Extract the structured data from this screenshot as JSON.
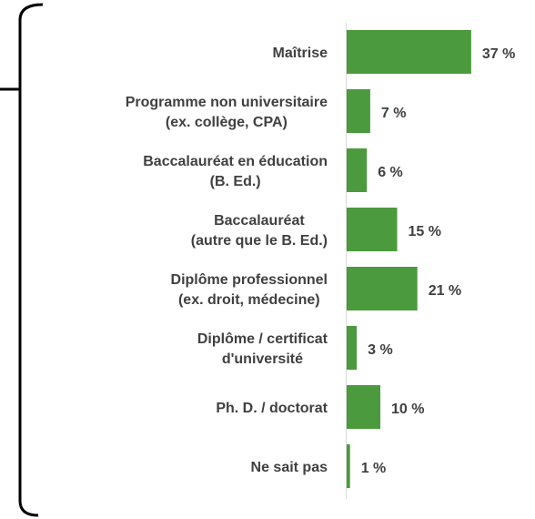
{
  "chart_data": {
    "type": "bar",
    "orientation": "horizontal",
    "color": "#4b9a3d",
    "categories": [
      [
        "Maîtrise"
      ],
      [
        "Programme non universitaire",
        "(ex. collège, CPA)"
      ],
      [
        "Baccalauréat en éducation",
        "(B. Ed.)"
      ],
      [
        "Baccalauréat",
        "(autre que le B. Ed.)"
      ],
      [
        "Diplôme professionnel",
        "(ex. droit, médecine)"
      ],
      [
        "Diplôme / certificat",
        "d'université"
      ],
      [
        "Ph. D. / doctorat"
      ],
      [
        "Ne sait pas"
      ]
    ],
    "values": [
      37,
      7,
      6,
      15,
      21,
      3,
      10,
      1
    ],
    "value_labels": [
      "37 %",
      "7 %",
      "6 %",
      "15 %",
      "21 %",
      "3 %",
      "10 %",
      "1 %"
    ]
  }
}
